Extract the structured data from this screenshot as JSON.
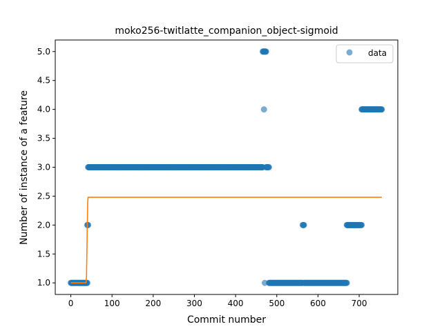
{
  "chart_data": {
    "type": "scatter",
    "title": "moko256-twitlatte_companion_object-sigmoid",
    "xlabel": "Commit number",
    "ylabel": "Number of instance of a feature",
    "xlim": [
      -37.8,
      793.8
    ],
    "ylim": [
      0.8,
      5.2
    ],
    "x_ticks": [
      0,
      100,
      200,
      300,
      400,
      500,
      600,
      700
    ],
    "y_ticks": [
      1.0,
      1.5,
      2.0,
      2.5,
      3.0,
      3.5,
      4.0,
      4.5,
      5.0
    ],
    "x_tick_labels": [
      "0",
      "100",
      "200",
      "300",
      "400",
      "500",
      "600",
      "700"
    ],
    "y_tick_labels": [
      "1.0",
      "1.5",
      "2.0",
      "2.5",
      "3.0",
      "3.5",
      "4.0",
      "4.5",
      "5.0"
    ],
    "legend": {
      "position": "top-right",
      "entries": [
        "data"
      ]
    },
    "grid": false,
    "series": [
      {
        "name": "data",
        "kind": "scatter",
        "color": "#1f77b4",
        "segments": [
          {
            "x_from": 0,
            "x_to": 40,
            "y": 1.0
          },
          {
            "x_from": 40,
            "x_to": 42,
            "y": 2.0
          },
          {
            "x_from": 42,
            "x_to": 466,
            "y": 3.0
          },
          {
            "x_from": 466,
            "x_to": 474,
            "y": 5.0
          },
          {
            "x_from": 469,
            "x_to": 469,
            "y": 4.0
          },
          {
            "x_from": 471,
            "x_to": 471,
            "y": 1.0
          },
          {
            "x_from": 474,
            "x_to": 481,
            "y": 3.0
          },
          {
            "x_from": 481,
            "x_to": 563,
            "y": 1.0
          },
          {
            "x_from": 563,
            "x_to": 566,
            "y": 2.0
          },
          {
            "x_from": 566,
            "x_to": 670,
            "y": 1.0
          },
          {
            "x_from": 670,
            "x_to": 706,
            "y": 2.0
          },
          {
            "x_from": 706,
            "x_to": 755,
            "y": 4.0
          }
        ]
      },
      {
        "name": "",
        "kind": "line",
        "color": "#ff7f0e",
        "points": [
          [
            0,
            1.0
          ],
          [
            37,
            1.0
          ],
          [
            38,
            1.1
          ],
          [
            39,
            1.5
          ],
          [
            40,
            2.0
          ],
          [
            41,
            2.4
          ],
          [
            42,
            2.48
          ],
          [
            755,
            2.48
          ]
        ]
      }
    ]
  }
}
